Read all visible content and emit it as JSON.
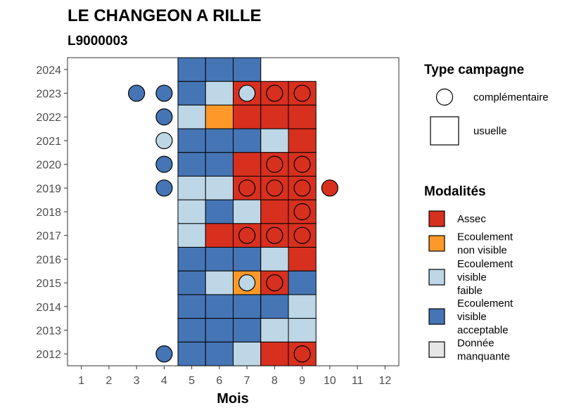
{
  "chart_data": {
    "type": "heatmap",
    "title": "LE CHANGEON A RILLE",
    "subtitle": "L9000003",
    "xlabel": "Mois",
    "ylabel": "",
    "x_ticks": [
      1,
      2,
      3,
      4,
      5,
      6,
      7,
      8,
      9,
      10,
      11,
      12
    ],
    "y_ticks": [
      2012,
      2013,
      2014,
      2015,
      2016,
      2017,
      2018,
      2019,
      2020,
      2021,
      2022,
      2023,
      2024
    ],
    "xlim": [
      0.5,
      12.5
    ],
    "ylim": [
      2011.5,
      2024.5
    ],
    "colors": {
      "Assec": "#d7301f",
      "Ecoulement non visible": "#fe9929",
      "Ecoulement visible faible": "#bdd7e7",
      "Ecoulement visible acceptable": "#4575b4",
      "Donnée manquante": "#e6e6e6"
    },
    "legend_shape": {
      "title": "Type campagne",
      "items": [
        {
          "shape": "circle",
          "label": "complémentaire"
        },
        {
          "shape": "square",
          "label": "usuelle"
        }
      ]
    },
    "legend_fill": {
      "title": "Modalités",
      "items": [
        {
          "key": "Assec",
          "lines": [
            "Assec"
          ]
        },
        {
          "key": "Ecoulement non visible",
          "lines": [
            "Ecoulement",
            "non visible"
          ]
        },
        {
          "key": "Ecoulement visible faible",
          "lines": [
            "Ecoulement",
            "visible",
            "faible"
          ]
        },
        {
          "key": "Ecoulement visible acceptable",
          "lines": [
            "Ecoulement",
            "visible",
            "acceptable"
          ]
        },
        {
          "key": "Donnée manquante",
          "lines": [
            "Donnée",
            "manquante"
          ]
        }
      ]
    },
    "usuelle": [
      {
        "year": 2024,
        "month": 5,
        "value": "Ecoulement visible acceptable"
      },
      {
        "year": 2024,
        "month": 6,
        "value": "Ecoulement visible acceptable"
      },
      {
        "year": 2024,
        "month": 7,
        "value": "Ecoulement visible acceptable"
      },
      {
        "year": 2023,
        "month": 5,
        "value": "Ecoulement visible acceptable"
      },
      {
        "year": 2023,
        "month": 6,
        "value": "Ecoulement visible faible"
      },
      {
        "year": 2023,
        "month": 7,
        "value": "Assec"
      },
      {
        "year": 2023,
        "month": 8,
        "value": "Assec"
      },
      {
        "year": 2023,
        "month": 9,
        "value": "Assec"
      },
      {
        "year": 2022,
        "month": 5,
        "value": "Ecoulement visible faible"
      },
      {
        "year": 2022,
        "month": 6,
        "value": "Ecoulement non visible"
      },
      {
        "year": 2022,
        "month": 7,
        "value": "Assec"
      },
      {
        "year": 2022,
        "month": 8,
        "value": "Assec"
      },
      {
        "year": 2022,
        "month": 9,
        "value": "Assec"
      },
      {
        "year": 2021,
        "month": 5,
        "value": "Ecoulement visible acceptable"
      },
      {
        "year": 2021,
        "month": 6,
        "value": "Ecoulement visible acceptable"
      },
      {
        "year": 2021,
        "month": 7,
        "value": "Ecoulement visible acceptable"
      },
      {
        "year": 2021,
        "month": 8,
        "value": "Ecoulement visible faible"
      },
      {
        "year": 2021,
        "month": 9,
        "value": "Assec"
      },
      {
        "year": 2020,
        "month": 5,
        "value": "Ecoulement visible acceptable"
      },
      {
        "year": 2020,
        "month": 6,
        "value": "Ecoulement visible acceptable"
      },
      {
        "year": 2020,
        "month": 7,
        "value": "Assec"
      },
      {
        "year": 2020,
        "month": 8,
        "value": "Assec"
      },
      {
        "year": 2020,
        "month": 9,
        "value": "Assec"
      },
      {
        "year": 2019,
        "month": 5,
        "value": "Ecoulement visible faible"
      },
      {
        "year": 2019,
        "month": 6,
        "value": "Ecoulement visible faible"
      },
      {
        "year": 2019,
        "month": 7,
        "value": "Assec"
      },
      {
        "year": 2019,
        "month": 8,
        "value": "Assec"
      },
      {
        "year": 2019,
        "month": 9,
        "value": "Assec"
      },
      {
        "year": 2018,
        "month": 5,
        "value": "Ecoulement visible faible"
      },
      {
        "year": 2018,
        "month": 6,
        "value": "Ecoulement visible acceptable"
      },
      {
        "year": 2018,
        "month": 7,
        "value": "Ecoulement visible faible"
      },
      {
        "year": 2018,
        "month": 8,
        "value": "Assec"
      },
      {
        "year": 2018,
        "month": 9,
        "value": "Assec"
      },
      {
        "year": 2017,
        "month": 5,
        "value": "Ecoulement visible faible"
      },
      {
        "year": 2017,
        "month": 6,
        "value": "Assec"
      },
      {
        "year": 2017,
        "month": 7,
        "value": "Assec"
      },
      {
        "year": 2017,
        "month": 8,
        "value": "Assec"
      },
      {
        "year": 2017,
        "month": 9,
        "value": "Assec"
      },
      {
        "year": 2016,
        "month": 5,
        "value": "Ecoulement visible acceptable"
      },
      {
        "year": 2016,
        "month": 6,
        "value": "Ecoulement visible acceptable"
      },
      {
        "year": 2016,
        "month": 7,
        "value": "Ecoulement visible acceptable"
      },
      {
        "year": 2016,
        "month": 8,
        "value": "Ecoulement visible faible"
      },
      {
        "year": 2016,
        "month": 9,
        "value": "Assec"
      },
      {
        "year": 2015,
        "month": 5,
        "value": "Ecoulement visible acceptable"
      },
      {
        "year": 2015,
        "month": 6,
        "value": "Ecoulement visible faible"
      },
      {
        "year": 2015,
        "month": 7,
        "value": "Ecoulement non visible"
      },
      {
        "year": 2015,
        "month": 8,
        "value": "Assec"
      },
      {
        "year": 2015,
        "month": 9,
        "value": "Ecoulement visible acceptable"
      },
      {
        "year": 2014,
        "month": 5,
        "value": "Ecoulement visible acceptable"
      },
      {
        "year": 2014,
        "month": 6,
        "value": "Ecoulement visible acceptable"
      },
      {
        "year": 2014,
        "month": 7,
        "value": "Ecoulement visible acceptable"
      },
      {
        "year": 2014,
        "month": 8,
        "value": "Ecoulement visible acceptable"
      },
      {
        "year": 2014,
        "month": 9,
        "value": "Ecoulement visible faible"
      },
      {
        "year": 2013,
        "month": 5,
        "value": "Ecoulement visible acceptable"
      },
      {
        "year": 2013,
        "month": 6,
        "value": "Ecoulement visible acceptable"
      },
      {
        "year": 2013,
        "month": 7,
        "value": "Ecoulement visible acceptable"
      },
      {
        "year": 2013,
        "month": 8,
        "value": "Ecoulement visible faible"
      },
      {
        "year": 2013,
        "month": 9,
        "value": "Ecoulement visible faible"
      },
      {
        "year": 2012,
        "month": 5,
        "value": "Ecoulement visible acceptable"
      },
      {
        "year": 2012,
        "month": 6,
        "value": "Ecoulement visible acceptable"
      },
      {
        "year": 2012,
        "month": 7,
        "value": "Ecoulement visible faible"
      },
      {
        "year": 2012,
        "month": 8,
        "value": "Assec"
      },
      {
        "year": 2012,
        "month": 9,
        "value": "Assec"
      }
    ],
    "complementaire": [
      {
        "year": 2023,
        "month": 3,
        "value": "Ecoulement visible acceptable"
      },
      {
        "year": 2023,
        "month": 4,
        "value": "Ecoulement visible acceptable"
      },
      {
        "year": 2023,
        "month": 7,
        "value": "Ecoulement visible faible"
      },
      {
        "year": 2023,
        "month": 8,
        "value": "Assec"
      },
      {
        "year": 2023,
        "month": 9,
        "value": "Assec"
      },
      {
        "year": 2022,
        "month": 4,
        "value": "Ecoulement visible acceptable"
      },
      {
        "year": 2021,
        "month": 4,
        "value": "Ecoulement visible faible"
      },
      {
        "year": 2020,
        "month": 4,
        "value": "Ecoulement visible acceptable"
      },
      {
        "year": 2020,
        "month": 8,
        "value": "Assec"
      },
      {
        "year": 2020,
        "month": 9,
        "value": "Assec"
      },
      {
        "year": 2019,
        "month": 4,
        "value": "Ecoulement visible acceptable"
      },
      {
        "year": 2019,
        "month": 7,
        "value": "Assec"
      },
      {
        "year": 2019,
        "month": 8,
        "value": "Assec"
      },
      {
        "year": 2019,
        "month": 9,
        "value": "Assec"
      },
      {
        "year": 2019,
        "month": 10,
        "value": "Assec"
      },
      {
        "year": 2018,
        "month": 9,
        "value": "Assec"
      },
      {
        "year": 2017,
        "month": 7,
        "value": "Assec"
      },
      {
        "year": 2017,
        "month": 8,
        "value": "Assec"
      },
      {
        "year": 2017,
        "month": 9,
        "value": "Assec"
      },
      {
        "year": 2015,
        "month": 7,
        "value": "Ecoulement visible faible"
      },
      {
        "year": 2015,
        "month": 8,
        "value": "Assec"
      },
      {
        "year": 2012,
        "month": 4,
        "value": "Ecoulement visible acceptable"
      },
      {
        "year": 2012,
        "month": 9,
        "value": "Assec"
      }
    ]
  }
}
